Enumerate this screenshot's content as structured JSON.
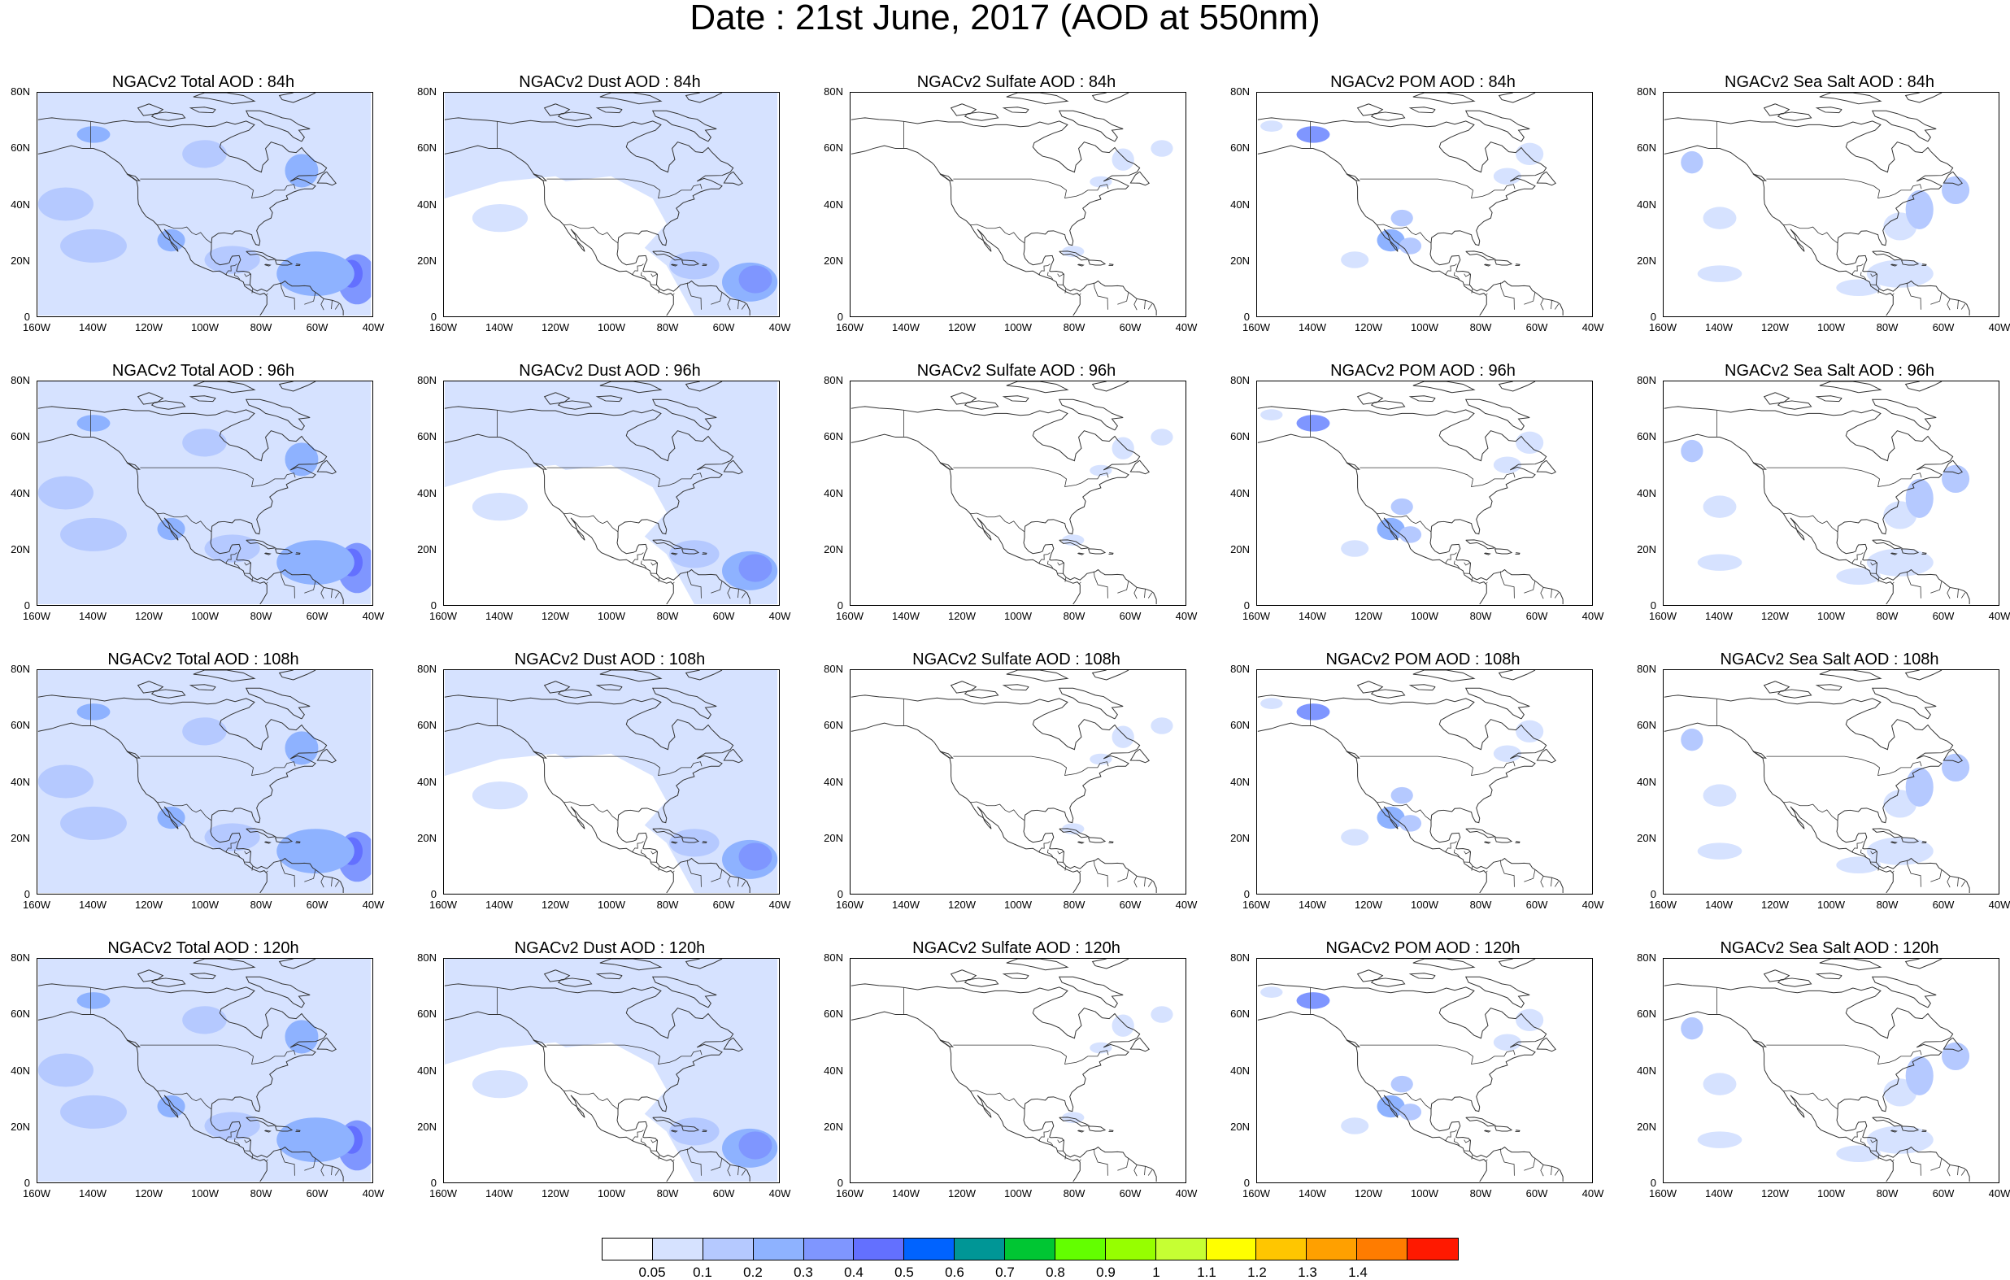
{
  "title": "Date : 21st June, 2017 (AOD at 550nm)",
  "lon_labels": [
    "160W",
    "140W",
    "120W",
    "100W",
    "80W",
    "60W",
    "40W"
  ],
  "lat_labels": [
    "80N",
    "60N",
    "40N",
    "20N",
    "0"
  ],
  "panels": [
    {
      "title": "NGACv2 Total AOD : 84h",
      "variable": "total",
      "forecast_hour": 84
    },
    {
      "title": "NGACv2 Dust AOD : 84h",
      "variable": "dust",
      "forecast_hour": 84
    },
    {
      "title": "NGACv2 Sulfate AOD : 84h",
      "variable": "sulfate",
      "forecast_hour": 84
    },
    {
      "title": "NGACv2 POM AOD : 84h",
      "variable": "pom",
      "forecast_hour": 84
    },
    {
      "title": "NGACv2 Sea Salt AOD : 84h",
      "variable": "seasalt",
      "forecast_hour": 84
    },
    {
      "title": "NGACv2 Total AOD : 96h",
      "variable": "total",
      "forecast_hour": 96
    },
    {
      "title": "NGACv2 Dust AOD : 96h",
      "variable": "dust",
      "forecast_hour": 96
    },
    {
      "title": "NGACv2 Sulfate AOD : 96h",
      "variable": "sulfate",
      "forecast_hour": 96
    },
    {
      "title": "NGACv2 POM AOD : 96h",
      "variable": "pom",
      "forecast_hour": 96
    },
    {
      "title": "NGACv2 Sea Salt AOD : 96h",
      "variable": "seasalt",
      "forecast_hour": 96
    },
    {
      "title": "NGACv2 Total AOD : 108h",
      "variable": "total",
      "forecast_hour": 108
    },
    {
      "title": "NGACv2 Dust AOD : 108h",
      "variable": "dust",
      "forecast_hour": 108
    },
    {
      "title": "NGACv2 Sulfate AOD : 108h",
      "variable": "sulfate",
      "forecast_hour": 108
    },
    {
      "title": "NGACv2 POM AOD : 108h",
      "variable": "pom",
      "forecast_hour": 108
    },
    {
      "title": "NGACv2 Sea Salt AOD : 108h",
      "variable": "seasalt",
      "forecast_hour": 108
    },
    {
      "title": "NGACv2 Total AOD : 120h",
      "variable": "total",
      "forecast_hour": 120
    },
    {
      "title": "NGACv2 Dust AOD : 120h",
      "variable": "dust",
      "forecast_hour": 120
    },
    {
      "title": "NGACv2 Sulfate AOD : 120h",
      "variable": "sulfate",
      "forecast_hour": 120
    },
    {
      "title": "NGACv2 POM AOD : 120h",
      "variable": "pom",
      "forecast_hour": 120
    },
    {
      "title": "NGACv2 Sea Salt  AOD : 120h",
      "variable": "seasalt",
      "forecast_hour": 120
    }
  ],
  "colorbar": {
    "labels": [
      "0.05",
      "0.1",
      "0.2",
      "0.3",
      "0.4",
      "0.5",
      "0.6",
      "0.7",
      "0.8",
      "0.9",
      "1",
      "1.1",
      "1.2",
      "1.3",
      "1.4"
    ],
    "colors": [
      "#ffffff",
      "#d6e2ff",
      "#b5c9ff",
      "#8eb2ff",
      "#7f96ff",
      "#6370ff",
      "#0063ff",
      "#009696",
      "#00c633",
      "#63ff00",
      "#96ff00",
      "#c6ff33",
      "#ffff00",
      "#ffc600",
      "#ffa000",
      "#ff7c00",
      "#ff1900"
    ]
  },
  "map_style": {
    "ocean_color": "#ffffff",
    "coast_color": "#333333"
  }
}
